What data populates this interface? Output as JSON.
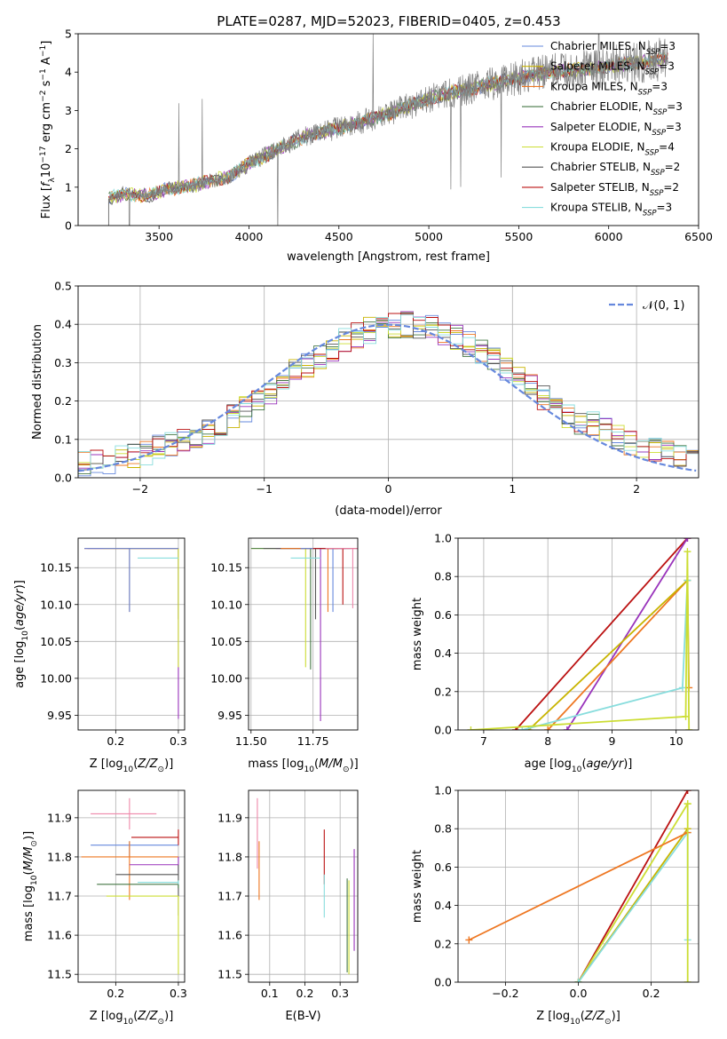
{
  "figure": {
    "title": "PLATE=0287, MJD=52023, FIBERID=0405, z=0.453"
  },
  "legend_entries": [
    {
      "base": "Chabrier MILES, N",
      "sub": "SSP",
      "tail": "=3",
      "color": "#6688dd"
    },
    {
      "base": "Salpeter MILES, N",
      "sub": "SSP",
      "tail": "=3",
      "color": "#c8b400"
    },
    {
      "base": "Kroupa MILES, N",
      "sub": "SSP",
      "tail": "=3",
      "color": "#ee7722"
    },
    {
      "base": "Chabrier ELODIE, N",
      "sub": "SSP",
      "tail": "=3",
      "color": "#447744"
    },
    {
      "base": "Salpeter ELODIE, N",
      "sub": "SSP",
      "tail": "=3",
      "color": "#9933bb"
    },
    {
      "base": "Kroupa ELODIE, N",
      "sub": "SSP",
      "tail": "=4",
      "color": "#ccdd33"
    },
    {
      "base": "Chabrier STELIB, N",
      "sub": "SSP",
      "tail": "=2",
      "color": "#555555"
    },
    {
      "base": "Salpeter STELIB, N",
      "sub": "SSP",
      "tail": "=2",
      "color": "#bb1111"
    },
    {
      "base": "Kroupa STELIB, N",
      "sub": "SSP",
      "tail": "=3",
      "color": "#88dddd"
    }
  ],
  "normal_legend": "𝒩(0, 1)",
  "chart_data": [
    {
      "id": "spectrum",
      "type": "line",
      "xlabel": "wavelength [Angstrom, rest frame]",
      "ylabel": "Flux [f_λ 10^-17 erg cm^-2 s^-1 A^-1]",
      "xlim": [
        3050,
        6500
      ],
      "ylim": [
        0,
        5
      ],
      "xticks": [
        3500,
        4000,
        4500,
        5000,
        5500,
        6000,
        6500
      ],
      "yticks": [
        0,
        1,
        2,
        3,
        4,
        5
      ],
      "data_x_range": [
        3220,
        6330
      ],
      "continuum_knots": [
        [
          3220,
          0.7
        ],
        [
          3300,
          0.82
        ],
        [
          3450,
          0.78
        ],
        [
          3550,
          0.95
        ],
        [
          3700,
          1.05
        ],
        [
          3900,
          1.3
        ],
        [
          4000,
          1.6
        ],
        [
          4100,
          1.85
        ],
        [
          4300,
          2.3
        ],
        [
          4500,
          2.55
        ],
        [
          4700,
          2.8
        ],
        [
          5000,
          3.3
        ],
        [
          5300,
          3.65
        ],
        [
          5600,
          3.95
        ],
        [
          6000,
          4.15
        ],
        [
          6330,
          4.35
        ]
      ],
      "grid": false
    },
    {
      "id": "residual_hist",
      "type": "histogram",
      "xlabel": "(data-model)/error",
      "ylabel": "Normed distribution",
      "xlim": [
        -2.5,
        2.5
      ],
      "ylim": [
        0,
        0.5
      ],
      "xticks": [
        -2,
        -1,
        0,
        1,
        2
      ],
      "yticks": [
        0,
        0.1,
        0.2,
        0.3,
        0.4,
        0.5
      ],
      "bins": {
        "start": -2.5,
        "width": 0.1,
        "count": 50
      },
      "series": [
        {
          "color": "#6688dd",
          "seed": 3
        },
        {
          "color": "#c8b400",
          "seed": 7
        },
        {
          "color": "#ee7722",
          "seed": 11
        },
        {
          "color": "#447744",
          "seed": 17
        },
        {
          "color": "#9933bb",
          "seed": 23
        },
        {
          "color": "#ccdd33",
          "seed": 29
        },
        {
          "color": "#555555",
          "seed": 31
        },
        {
          "color": "#bb1111",
          "seed": 37
        },
        {
          "color": "#88dddd",
          "seed": 41
        }
      ],
      "reference_curve": "normal(0,1)",
      "grid": true
    },
    {
      "id": "age_vs_Z",
      "type": "errorbar",
      "xlabel": "Z [log10(Z/Z⊙)]",
      "ylabel": "age [log10(age/yr)]",
      "xlim": [
        0.14,
        0.31
      ],
      "ylim": [
        9.93,
        10.19
      ],
      "xticks": [
        0.2,
        0.3
      ],
      "yticks": [
        9.95,
        10.0,
        10.05,
        10.1,
        10.15
      ],
      "points": [
        {
          "x": 0.3,
          "y": 10.176,
          "xerr": [
            0.155,
            0.3
          ],
          "yerr": [
            10.08,
            10.176
          ],
          "color": "#555555"
        },
        {
          "x": 0.3,
          "y": 10.176,
          "xerr": [
            0.15,
            0.3
          ],
          "yerr": [
            9.945,
            10.176
          ],
          "color": "#9933bb"
        },
        {
          "x": 0.3,
          "y": 10.176,
          "xerr": [
            0.18,
            0.3
          ],
          "yerr": [
            10.015,
            10.176
          ],
          "color": "#ccdd33"
        },
        {
          "x": 0.222,
          "y": 10.176,
          "xerr": [
            0.15,
            0.3
          ],
          "yerr": [
            10.09,
            10.176
          ],
          "color": "#ee7722"
        },
        {
          "x": 0.222,
          "y": 10.176,
          "xerr": [
            0.15,
            0.3
          ],
          "yerr": [
            10.09,
            10.176
          ],
          "color": "#6688dd"
        },
        {
          "x": 0.3,
          "y": 10.163,
          "xerr": [
            0.235,
            0.3
          ],
          "yerr": [
            10.163,
            10.163
          ],
          "color": "#88dddd"
        }
      ],
      "grid": true
    },
    {
      "id": "age_vs_mass",
      "type": "errorbar",
      "xlabel": "mass [log10(M/M⊙)]",
      "ylabel": "",
      "xlim": [
        11.49,
        11.93
      ],
      "ylim": [
        9.93,
        10.19
      ],
      "xticks": [
        11.5,
        11.75
      ],
      "yticks": [
        9.95,
        10.0,
        10.05,
        10.1,
        10.15
      ],
      "points": [
        {
          "x": 11.72,
          "y": 10.176,
          "xerr": [
            11.5,
            11.85
          ],
          "yerr": [
            10.015,
            10.176
          ],
          "color": "#ccdd33"
        },
        {
          "x": 11.74,
          "y": 10.176,
          "xerr": [
            11.5,
            11.85
          ],
          "yerr": [
            10.012,
            10.176
          ],
          "color": "#447744"
        },
        {
          "x": 11.78,
          "y": 10.176,
          "xerr": [
            11.6,
            11.88
          ],
          "yerr": [
            9.942,
            10.176
          ],
          "color": "#9933bb"
        },
        {
          "x": 11.76,
          "y": 10.176,
          "xerr": [
            11.55,
            11.9
          ],
          "yerr": [
            10.08,
            10.176
          ],
          "color": "#555555"
        },
        {
          "x": 11.81,
          "y": 10.176,
          "xerr": [
            11.62,
            11.85
          ],
          "yerr": [
            10.09,
            10.176
          ],
          "color": "#ee7722"
        },
        {
          "x": 11.83,
          "y": 10.176,
          "xerr": [
            11.7,
            11.93
          ],
          "yerr": [
            10.09,
            10.176
          ],
          "color": "#6688dd"
        },
        {
          "x": 11.87,
          "y": 10.176,
          "xerr": [
            11.75,
            11.93
          ],
          "yerr": [
            10.1,
            10.176
          ],
          "color": "#bb1111"
        },
        {
          "x": 11.91,
          "y": 10.176,
          "xerr": [
            11.8,
            11.93
          ],
          "yerr": [
            10.095,
            10.176
          ],
          "color": "#ee88aa"
        },
        {
          "x": 11.73,
          "y": 10.163,
          "xerr": [
            11.66,
            11.78
          ],
          "yerr": [
            10.163,
            10.163
          ],
          "color": "#88dddd"
        }
      ],
      "grid": true
    },
    {
      "id": "weight_vs_age",
      "type": "line",
      "xlabel": "age [log10(age/yr)]",
      "ylabel": "mass weight",
      "xlim": [
        6.6,
        10.35
      ],
      "ylim": [
        0,
        1
      ],
      "xticks": [
        7,
        8,
        9,
        10
      ],
      "yticks": [
        0,
        0.2,
        0.4,
        0.6,
        0.8,
        1.0
      ],
      "series": [
        {
          "color": "#bb1111",
          "x": [
            7.5,
            10.176
          ],
          "y": [
            0,
            1.0
          ]
        },
        {
          "color": "#9933bb",
          "x": [
            8.3,
            10.176
          ],
          "y": [
            0,
            1.0
          ]
        },
        {
          "color": "#ee7722",
          "x": [
            8.0,
            10.176,
            10.2
          ],
          "y": [
            0,
            0.78,
            0.22
          ]
        },
        {
          "color": "#c8b400",
          "x": [
            7.7,
            10.176
          ],
          "y": [
            0,
            0.78
          ]
        },
        {
          "color": "#88dddd",
          "x": [
            7.6,
            10.1,
            10.176
          ],
          "y": [
            0,
            0.22,
            0.78
          ]
        },
        {
          "color": "#ccdd33",
          "x": [
            6.8,
            10.15,
            10.176,
            10.2
          ],
          "y": [
            0,
            0.07,
            0.93,
            0.0
          ]
        }
      ],
      "grid": true
    },
    {
      "id": "mass_vs_Z",
      "type": "errorbar",
      "xlabel": "Z [log10(Z/Z⊙)]",
      "ylabel": "mass [log10(M/M⊙)]",
      "xlim": [
        0.14,
        0.31
      ],
      "ylim": [
        11.48,
        11.97
      ],
      "xticks": [
        0.2,
        0.3
      ],
      "yticks": [
        11.5,
        11.6,
        11.7,
        11.8,
        11.9
      ],
      "points": [
        {
          "x": 0.222,
          "y": 11.91,
          "xerr": [
            0.16,
            0.265
          ],
          "yerr": [
            11.87,
            11.95
          ],
          "color": "#ee88aa"
        },
        {
          "x": 0.222,
          "y": 11.83,
          "xerr": [
            0.16,
            0.3
          ],
          "yerr": [
            11.8,
            11.84
          ],
          "color": "#6688dd"
        },
        {
          "x": 0.222,
          "y": 11.8,
          "xerr": [
            0.145,
            0.3
          ],
          "yerr": [
            11.69,
            11.84
          ],
          "color": "#ee7722"
        },
        {
          "x": 0.3,
          "y": 11.85,
          "xerr": [
            0.225,
            0.3
          ],
          "yerr": [
            11.83,
            11.87
          ],
          "color": "#bb1111"
        },
        {
          "x": 0.3,
          "y": 11.78,
          "xerr": [
            0.222,
            0.3
          ],
          "yerr": [
            11.76,
            11.8
          ],
          "color": "#9933bb"
        },
        {
          "x": 0.3,
          "y": 11.755,
          "xerr": [
            0.2,
            0.3
          ],
          "yerr": [
            11.65,
            11.78
          ],
          "color": "#555555"
        },
        {
          "x": 0.3,
          "y": 11.73,
          "xerr": [
            0.17,
            0.3
          ],
          "yerr": [
            11.72,
            11.74
          ],
          "color": "#447744"
        },
        {
          "x": 0.3,
          "y": 11.735,
          "xerr": [
            0.235,
            0.3
          ],
          "yerr": [
            11.73,
            11.74
          ],
          "color": "#88dddd"
        },
        {
          "x": 0.3,
          "y": 11.7,
          "xerr": [
            0.185,
            0.3
          ],
          "yerr": [
            11.5,
            11.7
          ],
          "color": "#ccdd33"
        }
      ],
      "grid": true
    },
    {
      "id": "mass_vs_ebv",
      "type": "errorbar",
      "xlabel": "E(B-V)",
      "ylabel": "",
      "xlim": [
        0.04,
        0.35
      ],
      "ylim": [
        11.48,
        11.97
      ],
      "xticks": [
        0.1,
        0.2,
        0.3
      ],
      "yticks": [
        11.5,
        11.6,
        11.7,
        11.8,
        11.9
      ],
      "points": [
        {
          "x": 0.065,
          "y": 11.85,
          "yerr": [
            11.77,
            11.95
          ],
          "color": "#ee88aa"
        },
        {
          "x": 0.07,
          "y": 11.8,
          "yerr": [
            11.69,
            11.84
          ],
          "color": "#ee7722"
        },
        {
          "x": 0.255,
          "y": 11.8,
          "yerr": [
            11.73,
            11.87
          ],
          "color": "#bb1111"
        },
        {
          "x": 0.255,
          "y": 11.7,
          "yerr": [
            11.645,
            11.755
          ],
          "color": "#88dddd"
        },
        {
          "x": 0.32,
          "y": 11.62,
          "yerr": [
            11.505,
            11.745
          ],
          "color": "#447744"
        },
        {
          "x": 0.325,
          "y": 11.62,
          "yerr": [
            11.5,
            11.74
          ],
          "color": "#ccdd33"
        },
        {
          "x": 0.34,
          "y": 11.7,
          "yerr": [
            11.56,
            11.82
          ],
          "color": "#9933bb"
        }
      ],
      "grid": true
    },
    {
      "id": "weight_vs_Z",
      "type": "line",
      "xlabel": "Z [log10(Z/Z⊙)]",
      "ylabel": "mass weight",
      "xlim": [
        -0.33,
        0.33
      ],
      "ylim": [
        0,
        1
      ],
      "xticks": [
        -0.2,
        0.0,
        0.2
      ],
      "yticks": [
        0,
        0.2,
        0.4,
        0.6,
        0.8,
        1.0
      ],
      "series": [
        {
          "color": "#bb1111",
          "x": [
            0.0,
            0.3
          ],
          "y": [
            0,
            1.0
          ]
        },
        {
          "color": "#ccdd33",
          "x": [
            0.0,
            0.3
          ],
          "y": [
            0,
            0.93
          ]
        },
        {
          "color": "#c8b400",
          "x": [
            0.0,
            0.3
          ],
          "y": [
            0,
            0.8
          ]
        },
        {
          "color": "#88dddd",
          "x": [
            0.0,
            0.3,
            0.3
          ],
          "y": [
            0,
            0.78,
            0.22
          ]
        },
        {
          "color": "#ee7722",
          "x": [
            -0.3,
            0.3
          ],
          "y": [
            0.22,
            0.78
          ]
        },
        {
          "color": "#ccdd33",
          "x": [
            0.3,
            0.3
          ],
          "y": [
            0.0,
            0.93
          ]
        }
      ],
      "grid": true
    }
  ]
}
